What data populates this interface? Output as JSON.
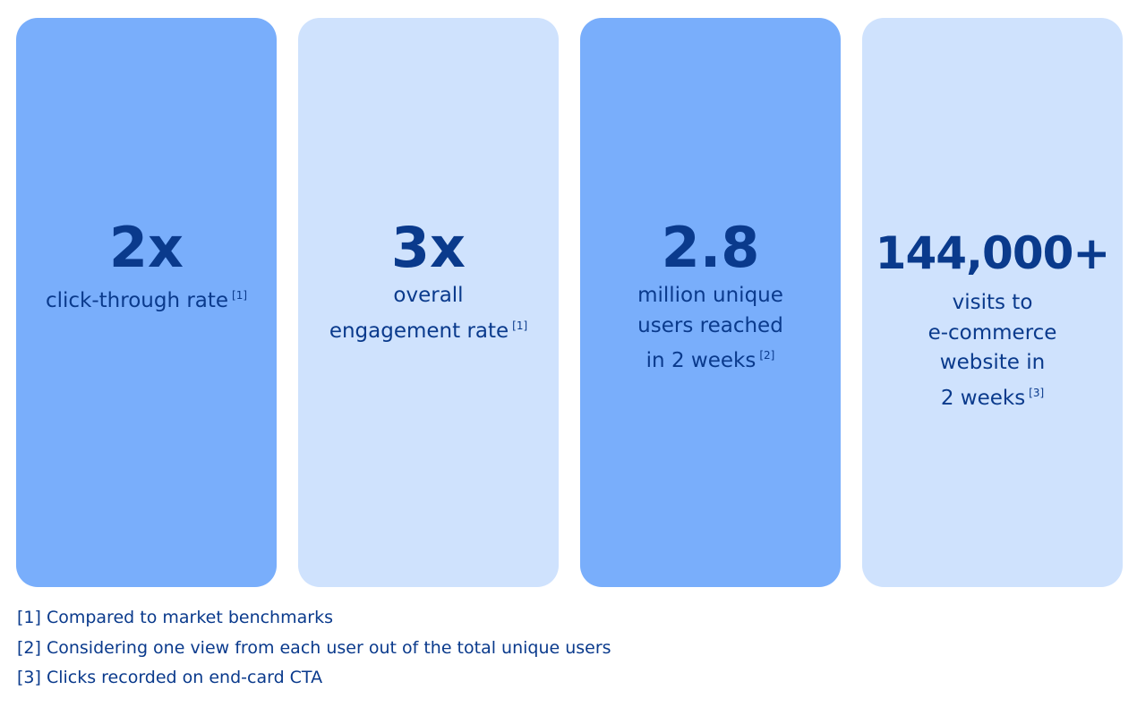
{
  "stats": [
    {
      "value": "2x",
      "lines": [
        "click-through rate"
      ],
      "ref": "[1]"
    },
    {
      "value": "3x",
      "lines": [
        "overall",
        "engagement rate"
      ],
      "ref": "[1]"
    },
    {
      "value": "2.8",
      "lines": [
        "million unique",
        "users reached",
        "in 2 weeks"
      ],
      "ref": "[2]"
    },
    {
      "value": "144,000+",
      "lines": [
        "visits to",
        "e-commerce",
        "website in",
        "2 weeks"
      ],
      "ref": "[3]"
    }
  ],
  "footnotes": [
    "[1] Compared to market benchmarks",
    "[2] Considering one view from each user out of the total unique users",
    "[3] Clicks recorded on end-card CTA"
  ],
  "colors": {
    "card_dark": "#79aefb",
    "card_light": "#cfe2fd",
    "text": "#0a3a8c"
  }
}
